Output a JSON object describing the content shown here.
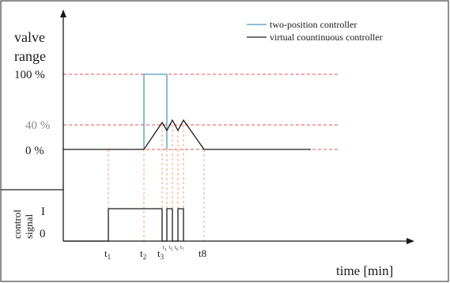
{
  "legend": {
    "two_position": "two-position controller",
    "virtual_continuous": "virtual countinuous controller"
  },
  "y_axis": {
    "label_line1": "valve",
    "label_line2": "range",
    "tick_100": "100 %",
    "tick_40": "40 %",
    "tick_0": "0 %"
  },
  "control_axis": {
    "label_line1": "control",
    "label_line2": "signal",
    "level_high": "I",
    "level_low": "0"
  },
  "x_axis": {
    "label": "time [min]",
    "t1": "t",
    "t1_sub": "1",
    "t2": "t",
    "t2_sub": "2",
    "t3": "t",
    "t3_sub": "3",
    "t4": "t",
    "t4_sub": "4",
    "t5": "t",
    "t5_sub": "5",
    "t6": "t",
    "t6_sub": "6",
    "t7": "t",
    "t7_sub": "7",
    "t8": "t8"
  },
  "colors": {
    "two_position": "#4a9bb5",
    "virtual_continuous": "#1a1a1a",
    "threshold_lines": "#e05050",
    "time_markers": "#f0a070",
    "tick_40_text": "#8a8a8a"
  }
}
